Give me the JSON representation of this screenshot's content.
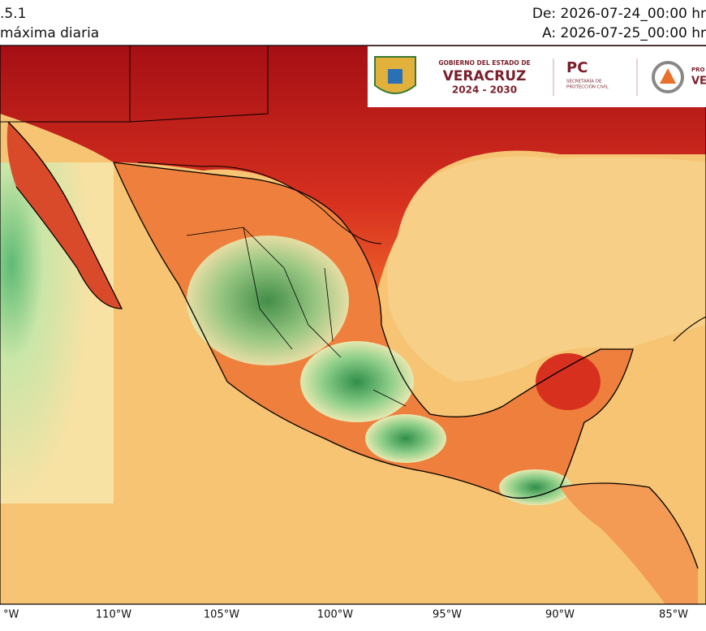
{
  "header": {
    "model": ".5.1",
    "variable": "máxima diaria",
    "from": "De: 2026-07-24_00:00 hr",
    "to": "A: 2026-07-25_00:00 hr"
  },
  "logos": {
    "gov_line": "GOBIERNO DEL ESTADO DE",
    "state": "VERACRUZ",
    "term": "2024 - 2030",
    "pc": "PC",
    "pc_sub1": "SECRETARÍA DE",
    "pc_sub2": "PROTECCIÓN CIVIL",
    "pro": "PRO",
    "ve": "VE"
  },
  "map": {
    "lon_labels": [
      "°W",
      "110°W",
      "105°W",
      "100°W",
      "95°W",
      "90°W",
      "85°W"
    ]
  }
}
